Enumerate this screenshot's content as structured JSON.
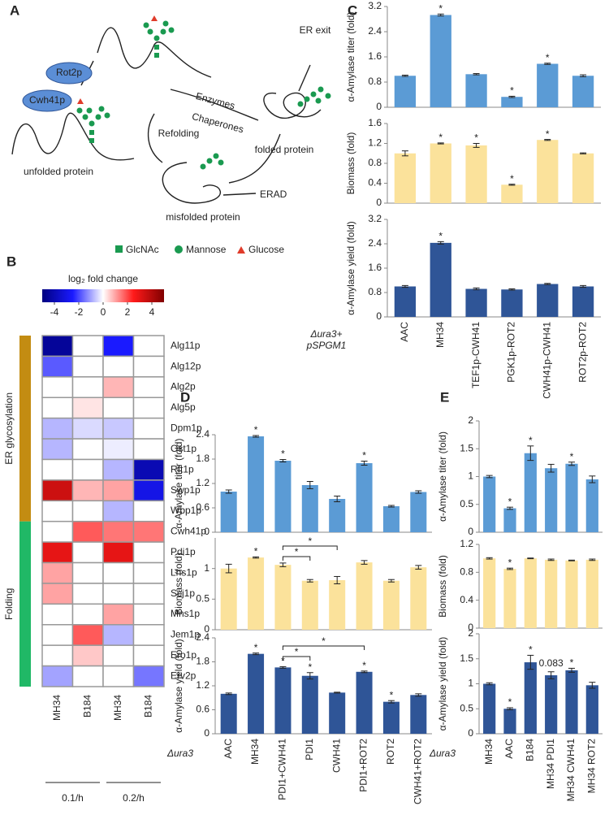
{
  "panel_labels": [
    "A",
    "B",
    "C",
    "D",
    "E"
  ],
  "diagram": {
    "enzymes": [
      "Rot2p",
      "Cwh41p"
    ],
    "unfolded": "unfolded protein",
    "path_labels": [
      "Enzymes",
      "Chaperones",
      "Refolding"
    ],
    "folded": "folded protein",
    "exit": "ER exit",
    "erad": "ERAD",
    "misfolded": "misfolded protein",
    "legend": [
      "GlcNAc",
      "Mannose",
      "Glucose"
    ]
  },
  "chart_data": [
    {
      "type": "heatmap",
      "title": "log₂ fold change",
      "zlim": [
        -5,
        5
      ],
      "zticks": [
        -4,
        -2,
        0,
        2,
        4
      ],
      "colorscale": [
        "#000080",
        "#1a1aff",
        "#ffffff",
        "#ff1a1a",
        "#800000"
      ],
      "rows": [
        "Alg11p",
        "Alg12p",
        "Alg2p",
        "Alg5p",
        "Dpm1p",
        "Ost1p",
        "Rft1p",
        "Swp1p",
        "Wbp1p",
        "Cwh41p",
        "Pdi1p",
        "Lhs1p",
        "Scj1p",
        "Mns1p",
        "Jem1p",
        "Ero1p",
        "Erv2p"
      ],
      "columns": [
        "MH34",
        "B184",
        "MH34",
        "B184"
      ],
      "column_groups": [
        {
          "label": "0.1/h",
          "columns": [
            0,
            1
          ]
        },
        {
          "label": "0.2/h",
          "columns": [
            2,
            3
          ]
        }
      ],
      "row_groups": [
        {
          "label": "ER glycosylation",
          "rows": [
            0,
            8
          ],
          "color": "#c38c12"
        },
        {
          "label": "Folding",
          "rows": [
            9,
            16
          ],
          "color": "#20b866"
        }
      ],
      "values": [
        [
          -4.5,
          0,
          -2.5,
          0
        ],
        [
          -1.8,
          0,
          0,
          0
        ],
        [
          0,
          0,
          0.8,
          0
        ],
        [
          0,
          0.3,
          0,
          0
        ],
        [
          -0.8,
          -0.4,
          -0.6,
          0
        ],
        [
          -0.8,
          0,
          -0.2,
          0
        ],
        [
          0,
          0,
          -0.8,
          -4
        ],
        [
          3.5,
          0.8,
          1,
          -3
        ],
        [
          0,
          0,
          -0.8,
          0
        ],
        [
          0,
          1.8,
          1.5,
          1.5
        ],
        [
          3,
          0,
          3,
          0
        ],
        [
          1,
          0,
          0,
          0
        ],
        [
          1,
          0,
          0,
          0
        ],
        [
          0,
          0,
          1,
          0
        ],
        [
          0,
          1.8,
          -0.8,
          0
        ],
        [
          0,
          0.6,
          0,
          0
        ],
        [
          -1,
          0,
          0,
          -1.5
        ]
      ]
    },
    {
      "type": "bar",
      "ylabel": "α-Amylase titer (fold)",
      "color": "#5b9bd5",
      "ylim": [
        0,
        3.2
      ],
      "yticks": [
        0,
        0.8,
        1.6,
        2.4,
        3.2
      ],
      "values": [
        1.0,
        2.93,
        1.05,
        0.33,
        1.38,
        1.0
      ],
      "errors": [
        0.02,
        0.03,
        0.02,
        0.02,
        0.02,
        0.03
      ],
      "markers": [
        null,
        "*",
        null,
        "*",
        "*",
        null
      ]
    },
    {
      "type": "bar",
      "ylabel": "Biomass (fold)",
      "color": "#fbe29b",
      "ylim": [
        0,
        1.6
      ],
      "yticks": [
        0,
        0.4,
        0.8,
        1.2,
        1.6
      ],
      "values": [
        1.0,
        1.2,
        1.16,
        0.37,
        1.27,
        1.0
      ],
      "errors": [
        0.05,
        0.01,
        0.04,
        0.01,
        0.01,
        0.01
      ],
      "markers": [
        null,
        "*",
        "*",
        "*",
        "*",
        null
      ]
    },
    {
      "type": "bar",
      "ylabel": "α-Amylase yield (fold)",
      "color": "#2f5597",
      "ylim": [
        0,
        3.2
      ],
      "yticks": [
        0,
        0.8,
        1.6,
        2.4,
        3.2
      ],
      "values": [
        1.0,
        2.43,
        0.92,
        0.9,
        1.08,
        1.0
      ],
      "errors": [
        0.03,
        0.04,
        0.03,
        0.02,
        0.02,
        0.03
      ],
      "markers": [
        null,
        "*",
        null,
        null,
        null,
        null
      ],
      "categories": [
        "AAC",
        "MH34",
        "TEF1p-CWH41",
        "PGK1p-ROT2",
        "CWH41p-CWH41",
        "ROT2p-ROT2"
      ],
      "strain_label": [
        "Δura3+",
        "pSPGM1"
      ]
    },
    {
      "type": "bar",
      "ylabel": "α-Amylase titer (fold)",
      "color": "#5b9bd5",
      "ylim": [
        0,
        2.4
      ],
      "yticks": [
        0,
        0.6,
        1.2,
        1.8,
        2.4
      ],
      "values": [
        1.0,
        2.36,
        1.76,
        1.16,
        0.82,
        1.7,
        0.64,
        0.99
      ],
      "errors": [
        0.04,
        0.02,
        0.03,
        0.09,
        0.07,
        0.05,
        0.02,
        0.03
      ],
      "markers": [
        null,
        "*",
        "*",
        null,
        null,
        "*",
        null,
        null
      ]
    },
    {
      "type": "bar",
      "ylabel": "Biomass (fold)",
      "color": "#fbe29b",
      "ylim": [
        0,
        1.5
      ],
      "yticks": [
        0,
        0.5,
        1
      ],
      "values": [
        1.0,
        1.18,
        1.06,
        0.8,
        0.81,
        1.1,
        0.8,
        1.02
      ],
      "errors": [
        0.07,
        0.01,
        0.03,
        0.02,
        0.06,
        0.03,
        0.02,
        0.03
      ],
      "markers": [
        null,
        "*",
        null,
        null,
        null,
        null,
        null,
        null
      ],
      "brackets": [
        {
          "from": 2,
          "to": 3,
          "label": "*"
        },
        {
          "from": 2,
          "to": 4,
          "label": "*"
        }
      ]
    },
    {
      "type": "bar",
      "ylabel": "α-Amylase yield (fold)",
      "color": "#2f5597",
      "ylim": [
        0,
        2.4
      ],
      "yticks": [
        0,
        0.6,
        1.2,
        1.8,
        2.4
      ],
      "values": [
        1.0,
        2.0,
        1.66,
        1.45,
        1.03,
        1.55,
        0.8,
        0.97
      ],
      "errors": [
        0.02,
        0.02,
        0.02,
        0.08,
        0.01,
        0.02,
        0.03,
        0.03
      ],
      "markers": [
        null,
        "*",
        "*",
        "*",
        null,
        "*",
        "*",
        null
      ],
      "brackets": [
        {
          "from": 2,
          "to": 3,
          "label": "*"
        },
        {
          "from": 2,
          "to": 5,
          "label": "*"
        }
      ],
      "categories": [
        "AAC",
        "MH34",
        "PDI1+CWH41",
        "PDI1",
        "CWH41",
        "PDI1+ROT2",
        "ROT2",
        "CWH41+ROT2"
      ],
      "strain_label": [
        "Δura3"
      ]
    },
    {
      "type": "bar",
      "ylabel": "α-Amylase titer (fold)",
      "color": "#5b9bd5",
      "ylim": [
        0,
        2
      ],
      "yticks": [
        0,
        0.5,
        1,
        1.5,
        2
      ],
      "values": [
        1.0,
        0.43,
        1.42,
        1.15,
        1.23,
        0.95
      ],
      "errors": [
        0.02,
        0.02,
        0.13,
        0.07,
        0.03,
        0.06
      ],
      "markers": [
        null,
        "*",
        "*",
        null,
        "*",
        null
      ]
    },
    {
      "type": "bar",
      "ylabel": "Biomass (fold)",
      "color": "#fbe29b",
      "ylim": [
        0,
        1.2
      ],
      "yticks": [
        0,
        0.4,
        0.8,
        1.2
      ],
      "values": [
        1.0,
        0.85,
        1.0,
        0.98,
        0.97,
        0.98
      ],
      "errors": [
        0.01,
        0.01,
        0.005,
        0.01,
        0.005,
        0.01
      ],
      "markers": [
        null,
        "*",
        null,
        null,
        null,
        null
      ]
    },
    {
      "type": "bar",
      "ylabel": "α-Amylase yield (fold)",
      "color": "#2f5597",
      "ylim": [
        0,
        2
      ],
      "yticks": [
        0,
        0.5,
        1,
        1.5,
        2
      ],
      "values": [
        1.0,
        0.5,
        1.43,
        1.17,
        1.27,
        0.97
      ],
      "errors": [
        0.02,
        0.02,
        0.14,
        0.07,
        0.04,
        0.06
      ],
      "markers": [
        null,
        "*",
        "*",
        "0.083",
        "*",
        null
      ],
      "categories": [
        "MH34",
        "AAC",
        "B184",
        "MH34 PDI1",
        "MH34 CWH41",
        "MH34 ROT2"
      ],
      "strain_label": [
        "Δura3"
      ]
    }
  ]
}
